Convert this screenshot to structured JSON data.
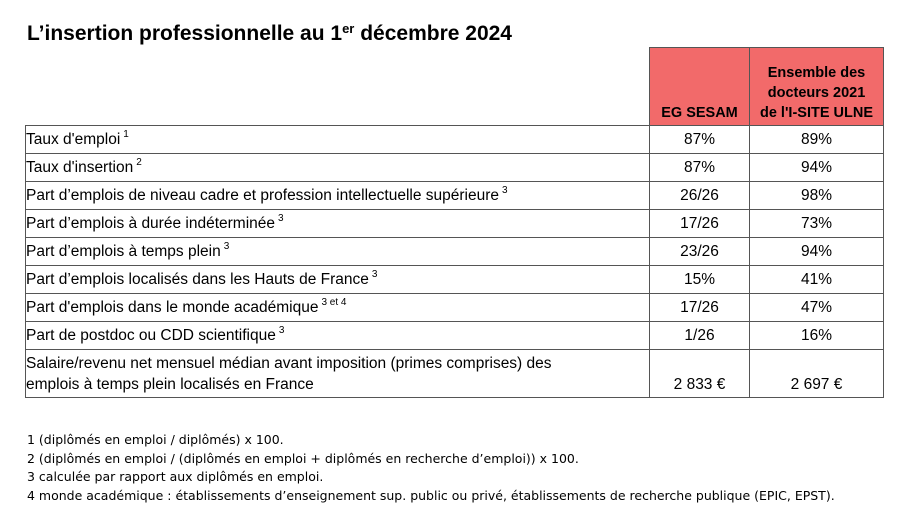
{
  "title": {
    "text": "L’insertion professionnelle au 1",
    "sup": "er",
    "text_after": " décembre 2024"
  },
  "table": {
    "header": {
      "col1": "EG SESAM",
      "col2_lines": [
        "Ensemble des",
        "docteurs 2021",
        "de l'I-SITE ULNE"
      ]
    },
    "rows": [
      {
        "label": "Taux d'emploi",
        "note": "1",
        "v1": "87%",
        "v2": "89%"
      },
      {
        "label": "Taux d'insertion",
        "note": "2",
        "v1": "87%",
        "v2": "94%"
      },
      {
        "label": "Part d’emplois de niveau cadre et profession intellectuelle supérieure",
        "note": "3",
        "v1": "26/26",
        "v2": "98%"
      },
      {
        "label": "Part d’emplois à durée indéterminée",
        "note": "3",
        "v1": "17/26",
        "v2": "73%"
      },
      {
        "label": "Part d’emplois à temps plein",
        "note": "3",
        "v1": "23/26",
        "v2": "94%"
      },
      {
        "label": "Part d’emplois localisés dans les Hauts de France",
        "note": "3",
        "v1": "15%",
        "v2": "41%"
      },
      {
        "label": "Part d'emplois dans le monde académique",
        "note": "3 et 4",
        "v1": "17/26",
        "v2": "47%"
      },
      {
        "label": "Part de postdoc ou CDD scientifique",
        "note": "3",
        "v1": "1/26",
        "v2": "16%"
      }
    ],
    "last_row": {
      "label_lines": [
        "Salaire/revenu net mensuel médian avant imposition (primes comprises) des",
        "emplois à temps plein localisés en France"
      ],
      "v1": "2 833 €",
      "v2": "2 697 €"
    }
  },
  "footnotes": [
    "1 (diplômés en emploi / diplômés) x 100.",
    "2 (diplômés en emploi / (diplômés en emploi + diplômés en recherche d’emploi)) x 100.",
    "3 calculée par rapport aux diplômés en emploi.",
    "4 monde académique : établissements d’enseignement sup. public ou privé, établissements de recherche publique (EPIC, EPST)."
  ],
  "colors": {
    "header_bg": "#f26a6a",
    "border": "#555555"
  }
}
